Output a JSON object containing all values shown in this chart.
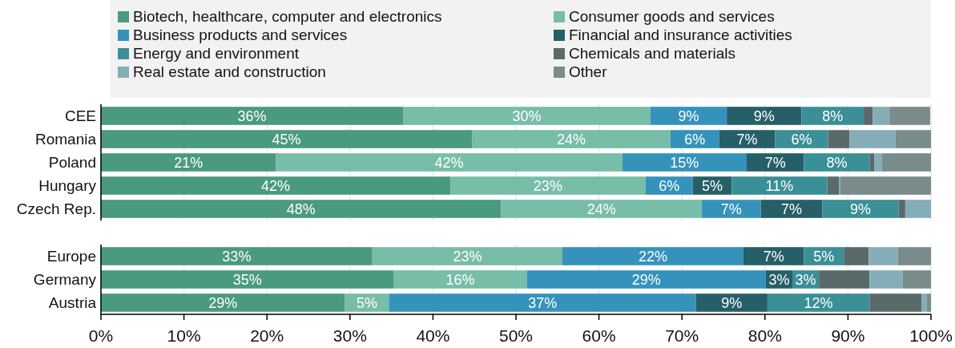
{
  "chart_data": [
    {
      "type": "bar",
      "orientation": "horizontal",
      "stacked": true,
      "categories": [
        "CEE",
        "Romania",
        "Poland",
        "Hungary",
        "Czech Rep."
      ],
      "xlim": [
        0,
        100
      ],
      "xticks": [
        {
          "value": 0,
          "label": null
        },
        {
          "value": 10,
          "label": null
        },
        {
          "value": 20,
          "label": null
        },
        {
          "value": 30,
          "label": null
        },
        {
          "value": 40,
          "label": null
        },
        {
          "value": 50,
          "label": null
        },
        {
          "value": 60,
          "label": null
        },
        {
          "value": 70,
          "label": null
        },
        {
          "value": 80,
          "label": null
        },
        {
          "value": 90,
          "label": null
        },
        {
          "value": 100,
          "label": null
        }
      ],
      "tick_labels": "y",
      "grid": "x",
      "legend": "top",
      "series": [
        {
          "name": "Biotech, healthcare, computer and electronics",
          "color": "#4a9a80",
          "values": [
            36.4,
            44.7,
            21.1,
            42.1,
            48.2
          ],
          "value_labels": [
            "36%",
            "45%",
            "21%",
            "42%",
            "48%"
          ]
        },
        {
          "name": "Consumer goods and services",
          "color": "#77bda7",
          "values": [
            29.8,
            23.9,
            41.7,
            23.5,
            24.2
          ],
          "value_labels": [
            "30%",
            "24%",
            "42%",
            "23%",
            "24%"
          ]
        },
        {
          "name": "Business products and services",
          "color": "#3593bb",
          "values": [
            9.2,
            5.9,
            15.0,
            5.7,
            7.1
          ],
          "value_labels": [
            "9%",
            "6%",
            "15%",
            "6%",
            "7%"
          ]
        },
        {
          "name": "Financial and insurance activities",
          "color": "#265f68",
          "values": [
            9.0,
            6.7,
            6.9,
            4.7,
            7.4
          ],
          "value_labels": [
            "9%",
            "7%",
            "7%",
            "5%",
            "7%"
          ]
        },
        {
          "name": "Energy and environment",
          "color": "#3b8f96",
          "values": [
            7.5,
            6.4,
            7.9,
            11.5,
            9.2
          ],
          "value_labels": [
            "8%",
            "6%",
            "8%",
            "11%",
            "9%"
          ]
        },
        {
          "name": "Chemicals and materials",
          "color": "#5a6a6a",
          "values": [
            1.1,
            2.6,
            0.6,
            1.4,
            0.8
          ]
        },
        {
          "name": "Real estate and construction",
          "color": "#85adb8",
          "values": [
            2.0,
            5.5,
            0.9,
            0.2,
            3.1
          ]
        },
        {
          "name": "Other",
          "color": "#7a8b8c",
          "values": [
            4.9,
            4.3,
            5.9,
            10.9,
            0
          ]
        }
      ]
    },
    {
      "type": "bar",
      "orientation": "horizontal",
      "stacked": true,
      "categories": [
        "Europe",
        "Germany",
        "Austria"
      ],
      "xlim": [
        0,
        100
      ],
      "xticks": [
        {
          "value": 0,
          "label": "0%"
        },
        {
          "value": 10,
          "label": "10%"
        },
        {
          "value": 20,
          "label": "20%"
        },
        {
          "value": 30,
          "label": "30%"
        },
        {
          "value": 40,
          "label": "40%"
        },
        {
          "value": 50,
          "label": "50%"
        },
        {
          "value": 60,
          "label": "60%"
        },
        {
          "value": 70,
          "label": "70%"
        },
        {
          "value": 80,
          "label": "80%"
        },
        {
          "value": 90,
          "label": "90%"
        },
        {
          "value": 100,
          "label": "100%"
        }
      ],
      "grid": "x",
      "series": [
        {
          "color": "#4a9a80",
          "values": [
            32.7,
            35.3,
            29.4
          ],
          "value_labels": [
            "33%",
            "35%",
            "29%"
          ]
        },
        {
          "color": "#77bda7",
          "values": [
            22.9,
            16.0,
            5.3
          ],
          "value_labels": [
            "23%",
            "16%",
            "5%"
          ]
        },
        {
          "color": "#3593bb",
          "values": [
            21.8,
            28.8,
            37.0
          ],
          "value_labels": [
            "22%",
            "29%",
            "37%"
          ]
        },
        {
          "color": "#265f68",
          "values": [
            7.3,
            3.2,
            8.6
          ],
          "value_labels": [
            "7%",
            "3%",
            "9%"
          ]
        },
        {
          "color": "#3b8f96",
          "values": [
            4.8,
            3.2,
            12.3
          ],
          "value_labels": [
            "5%",
            "3%",
            "12%"
          ]
        },
        {
          "color": "#5a6a6a",
          "values": [
            3.0,
            6.1,
            6.3
          ]
        },
        {
          "color": "#85adb8",
          "values": [
            3.5,
            4.0,
            0.6
          ]
        },
        {
          "color": "#7a8b8c",
          "values": [
            4.0,
            3.4,
            0.5
          ]
        }
      ]
    }
  ]
}
